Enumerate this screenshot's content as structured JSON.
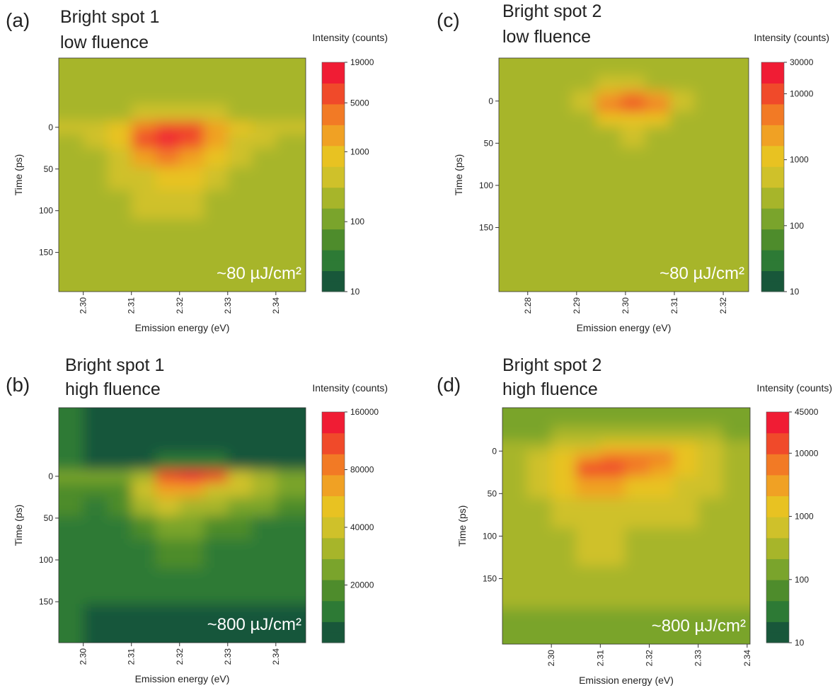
{
  "chart_data": [
    {
      "type": "heatmap",
      "panel_label": "(a)",
      "title": "Bright spot 1",
      "subtitle": "low fluence",
      "xlabel": "Emission energy (eV)",
      "ylabel": "Time (ps)",
      "colorbar_label": "Intensity (counts)",
      "annotation": "~80 µJ/cm²",
      "xlim": [
        2.2949,
        2.3462
      ],
      "ylim": [
        -83,
        197
      ],
      "y_inverted": true,
      "xticks": [
        {
          "value": 2.3,
          "label": "2.30"
        },
        2.31,
        2.32,
        2.33,
        2.34
      ],
      "yticks": [
        0,
        50,
        100,
        150
      ],
      "clim": [
        10,
        19000
      ],
      "clog": true,
      "cticks": [
        10,
        100,
        1000,
        5000,
        19000
      ],
      "colormap": [
        "#18573a",
        "#2d7a35",
        "#4e8c2c",
        "#7aa42c",
        "#a7b52a",
        "#cfc12a",
        "#e8c222",
        "#f0a124",
        "#f27a25",
        "#f04a2a",
        "#f01c34"
      ],
      "x": [
        2.2975,
        2.3025,
        2.3075,
        2.3125,
        2.3175,
        2.3225,
        2.3275,
        2.3325,
        2.3375,
        2.3425
      ],
      "y": [
        -70,
        -40,
        -15,
        0,
        15,
        35,
        60,
        90,
        130,
        175
      ],
      "z": [
        [
          250,
          250,
          250,
          250,
          250,
          250,
          250,
          250,
          250,
          250
        ],
        [
          250,
          250,
          250,
          250,
          250,
          250,
          250,
          250,
          250,
          250
        ],
        [
          250,
          250,
          300,
          400,
          500,
          450,
          350,
          250,
          250,
          250
        ],
        [
          400,
          500,
          800,
          3000,
          8000,
          6000,
          1500,
          800,
          500,
          400
        ],
        [
          300,
          400,
          700,
          5000,
          12000,
          9000,
          1500,
          600,
          400,
          300
        ],
        [
          250,
          300,
          500,
          1500,
          3000,
          2000,
          800,
          400,
          300,
          250
        ],
        [
          250,
          250,
          350,
          600,
          900,
          700,
          450,
          300,
          250,
          250
        ],
        [
          250,
          250,
          300,
          400,
          500,
          400,
          300,
          250,
          250,
          250
        ],
        [
          250,
          250,
          250,
          250,
          250,
          250,
          250,
          250,
          250,
          250
        ],
        [
          250,
          250,
          250,
          250,
          250,
          250,
          250,
          250,
          250,
          250
        ]
      ]
    },
    {
      "type": "heatmap",
      "panel_label": "(b)",
      "title": "Bright spot 1",
      "subtitle": "high fluence",
      "xlabel": "Emission energy (eV)",
      "ylabel": "Time (ps)",
      "colorbar_label": "Intensity (counts)",
      "annotation": "~800 µJ/cm²",
      "xlim": [
        2.2949,
        2.3462
      ],
      "ylim": [
        -82,
        199
      ],
      "y_inverted": true,
      "xticks": [
        {
          "value": 2.3,
          "label": "2.30"
        },
        2.31,
        2.32,
        2.33,
        2.34
      ],
      "yticks": [
        0,
        50,
        100,
        150
      ],
      "clim": [
        10000,
        160000
      ],
      "clog": true,
      "cticks": [
        20000,
        40000,
        80000,
        160000
      ],
      "colormap": [
        "#18573a",
        "#2d7a35",
        "#4e8c2c",
        "#7aa42c",
        "#a7b52a",
        "#cfc12a",
        "#e8c222",
        "#f0a124",
        "#f27a25",
        "#f04a2a",
        "#f01c34"
      ],
      "x": [
        2.2975,
        2.3025,
        2.3075,
        2.3125,
        2.3175,
        2.3225,
        2.3275,
        2.3325,
        2.3375,
        2.3425
      ],
      "y": [
        -70,
        -40,
        -15,
        0,
        15,
        35,
        60,
        90,
        130,
        175
      ],
      "z": [
        [
          16000,
          12000,
          12000,
          12000,
          12000,
          12000,
          12000,
          12000,
          12000,
          12000
        ],
        [
          16000,
          12000,
          12000,
          12000,
          12000,
          12000,
          12000,
          12000,
          12000,
          12000
        ],
        [
          16000,
          12000,
          12000,
          12000,
          13000,
          13000,
          13000,
          12000,
          12000,
          12000
        ],
        [
          25000,
          22000,
          22000,
          35000,
          120000,
          150000,
          110000,
          40000,
          28000,
          22000
        ],
        [
          20000,
          18000,
          20000,
          45000,
          70000,
          60000,
          45000,
          40000,
          35000,
          25000
        ],
        [
          17000,
          15000,
          17000,
          30000,
          40000,
          35000,
          28000,
          25000,
          22000,
          18000
        ],
        [
          16000,
          14000,
          15000,
          20000,
          25000,
          24000,
          20000,
          17000,
          15000,
          14000
        ],
        [
          16000,
          13000,
          14000,
          16000,
          18000,
          18000,
          16000,
          15000,
          14000,
          13000
        ],
        [
          16000,
          13000,
          13000,
          14000,
          15000,
          15000,
          14000,
          13000,
          13000,
          13000
        ],
        [
          16000,
          12000,
          12000,
          12000,
          12000,
          12000,
          12000,
          12000,
          12000,
          12000
        ]
      ]
    },
    {
      "type": "heatmap",
      "panel_label": "(c)",
      "title": "Bright spot 2",
      "subtitle": "low fluence",
      "xlabel": "Emission energy (eV)",
      "ylabel": "Time (ps)",
      "colorbar_label": "Intensity (counts)",
      "annotation": "~80 µJ/cm²",
      "xlim": [
        2.2741,
        2.3252
      ],
      "ylim": [
        -51,
        226
      ],
      "y_inverted": true,
      "xticks": [
        2.28,
        2.29,
        {
          "value": 2.3,
          "label": "2.30"
        },
        2.31,
        2.32
      ],
      "yticks": [
        0,
        50,
        100,
        150
      ],
      "clim": [
        10,
        30000
      ],
      "clog": true,
      "cticks": [
        10,
        100,
        1000,
        10000,
        30000
      ],
      "colormap": [
        "#18573a",
        "#2d7a35",
        "#4e8c2c",
        "#7aa42c",
        "#a7b52a",
        "#cfc12a",
        "#e8c222",
        "#f0a124",
        "#f27a25",
        "#f04a2a",
        "#f01c34"
      ],
      "x": [
        2.2765,
        2.2815,
        2.2865,
        2.2915,
        2.2965,
        2.3015,
        2.3065,
        2.3115,
        2.3165,
        2.3215
      ],
      "y": [
        -40,
        -20,
        -5,
        5,
        20,
        40,
        70,
        110,
        160,
        210
      ],
      "z": [
        [
          200,
          200,
          200,
          200,
          200,
          200,
          200,
          200,
          200,
          200
        ],
        [
          200,
          200,
          200,
          250,
          400,
          500,
          350,
          200,
          200,
          200
        ],
        [
          200,
          200,
          250,
          400,
          3000,
          6000,
          3000,
          400,
          250,
          200
        ],
        [
          200,
          200,
          250,
          400,
          4000,
          8000,
          4000,
          400,
          250,
          200
        ],
        [
          200,
          200,
          200,
          300,
          800,
          1500,
          800,
          300,
          200,
          200
        ],
        [
          200,
          200,
          200,
          250,
          350,
          400,
          300,
          200,
          200,
          200
        ],
        [
          200,
          200,
          200,
          200,
          200,
          200,
          200,
          200,
          200,
          200
        ],
        [
          200,
          200,
          200,
          200,
          200,
          200,
          200,
          200,
          200,
          200
        ],
        [
          200,
          200,
          200,
          200,
          200,
          200,
          200,
          200,
          200,
          200
        ],
        [
          200,
          200,
          200,
          200,
          200,
          200,
          200,
          200,
          200,
          200
        ]
      ]
    },
    {
      "type": "heatmap",
      "panel_label": "(d)",
      "title": "Bright spot 2",
      "subtitle": "high fluence",
      "xlabel": "Emission energy (eV)",
      "ylabel": "Time (ps)",
      "colorbar_label": "Intensity (counts)",
      "annotation": "~800 µJ/cm²",
      "xlim": [
        2.29,
        2.3406
      ],
      "ylim": [
        -51,
        227
      ],
      "y_inverted": true,
      "xticks": [
        {
          "value": 2.3,
          "label": "2.30"
        },
        2.31,
        2.32,
        2.33,
        2.34
      ],
      "yticks": [
        0,
        50,
        100,
        150
      ],
      "clim": [
        10,
        45000
      ],
      "clog": true,
      "cticks": [
        10,
        100,
        1000,
        10000,
        45000
      ],
      "colormap": [
        "#18573a",
        "#2d7a35",
        "#4e8c2c",
        "#7aa42c",
        "#a7b52a",
        "#cfc12a",
        "#e8c222",
        "#f0a124",
        "#f27a25",
        "#f04a2a",
        "#f01c34"
      ],
      "x": [
        2.2925,
        2.2975,
        2.3025,
        2.3075,
        2.3125,
        2.3175,
        2.3225,
        2.3275,
        2.3325,
        2.3375
      ],
      "y": [
        -40,
        -20,
        -5,
        5,
        20,
        40,
        70,
        110,
        160,
        210
      ],
      "z": [
        [
          200,
          200,
          200,
          200,
          200,
          200,
          200,
          200,
          200,
          200
        ],
        [
          200,
          200,
          250,
          300,
          350,
          400,
          400,
          350,
          250,
          200
        ],
        [
          250,
          300,
          500,
          800,
          1200,
          1500,
          2000,
          1500,
          600,
          300
        ],
        [
          300,
          500,
          1000,
          3000,
          6000,
          8000,
          6000,
          2000,
          800,
          400
        ],
        [
          300,
          600,
          1500,
          10000,
          15000,
          8000,
          3000,
          1000,
          600,
          400
        ],
        [
          300,
          500,
          1200,
          3000,
          2500,
          1500,
          1000,
          700,
          500,
          400
        ],
        [
          250,
          400,
          700,
          900,
          800,
          700,
          600,
          500,
          400,
          300
        ],
        [
          250,
          300,
          450,
          500,
          500,
          450,
          400,
          350,
          300,
          250
        ],
        [
          250,
          300,
          350,
          350,
          350,
          350,
          300,
          300,
          250,
          250
        ],
        [
          200,
          200,
          200,
          200,
          200,
          200,
          200,
          200,
          200,
          200
        ]
      ]
    }
  ]
}
